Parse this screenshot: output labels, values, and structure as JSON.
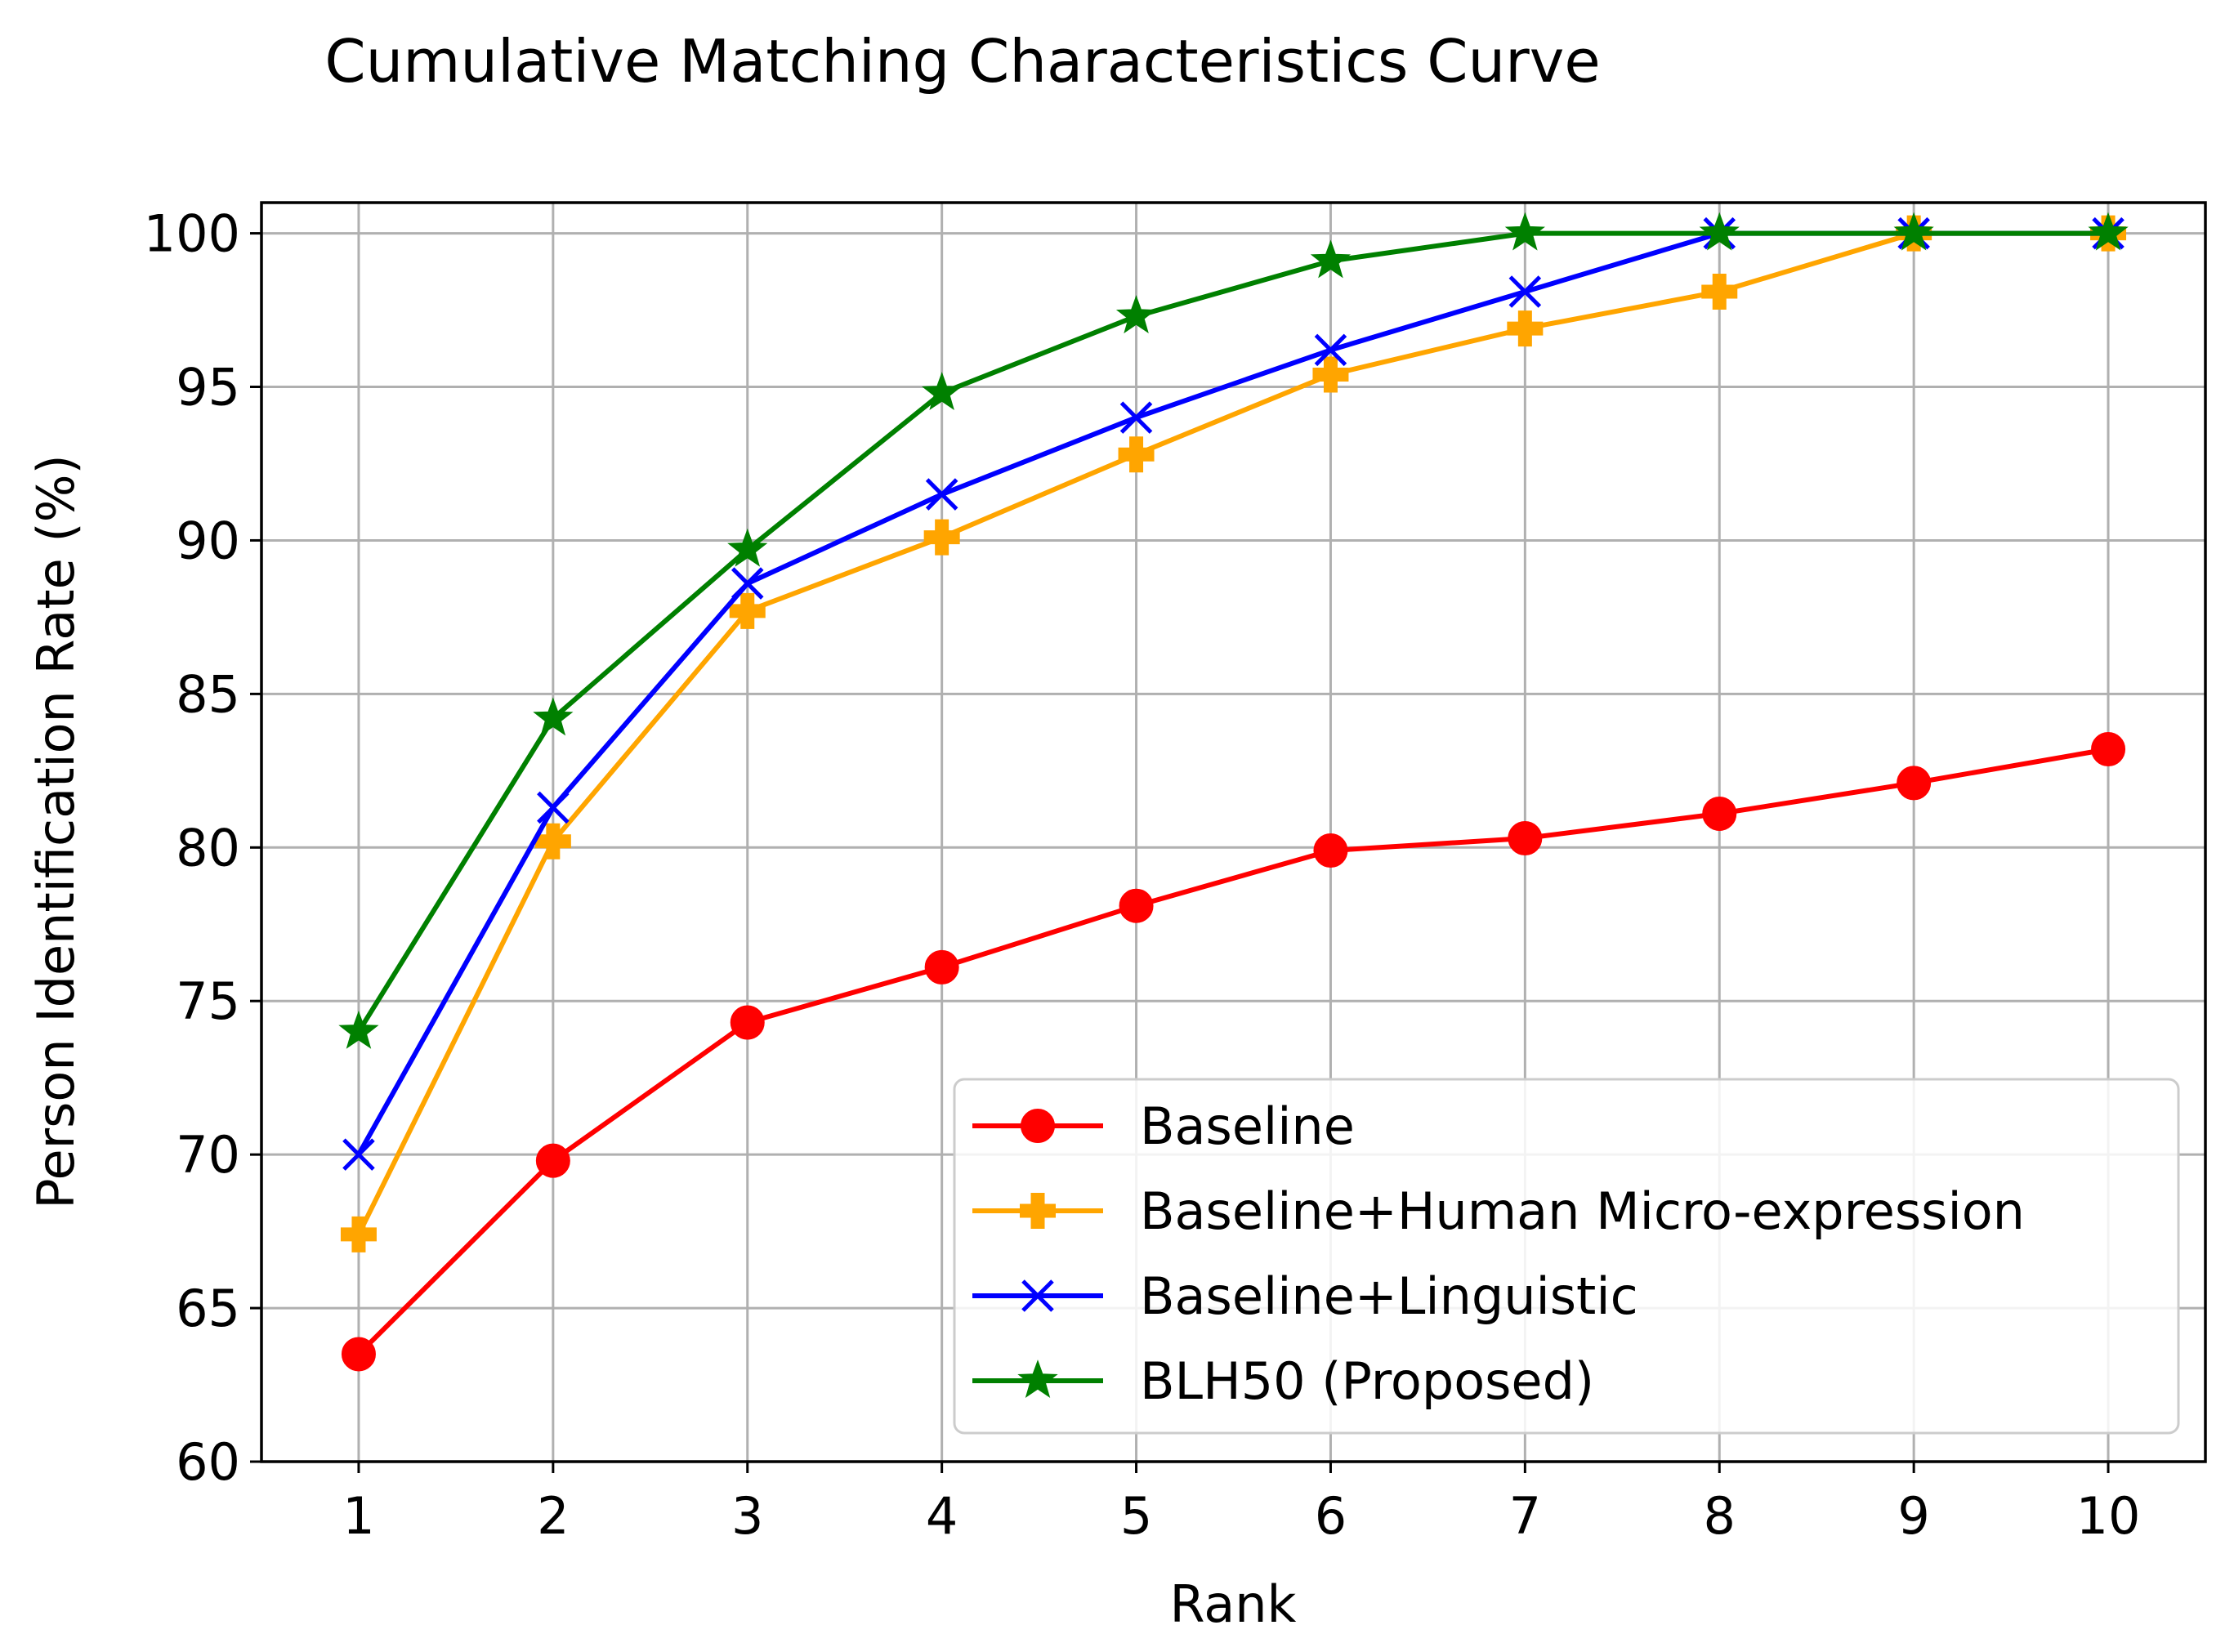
{
  "chart_data": {
    "type": "line",
    "title": "Cumulative Matching Characteristics Curve",
    "xlabel": "Rank",
    "ylabel": "Person Identification Rate (%)",
    "x": [
      1,
      2,
      3,
      4,
      5,
      6,
      7,
      8,
      9,
      10
    ],
    "xlim": [
      0.5,
      10.5
    ],
    "ylim": [
      60,
      101
    ],
    "xticks": [
      1,
      2,
      3,
      4,
      5,
      6,
      7,
      8,
      9,
      10
    ],
    "yticks": [
      60,
      65,
      70,
      75,
      80,
      85,
      90,
      95,
      100
    ],
    "grid": true,
    "legend_position": "lower-right",
    "series": [
      {
        "name": "Baseline",
        "color": "#ff0000",
        "marker": "circle",
        "values": [
          63.5,
          69.8,
          74.3,
          76.1,
          78.1,
          79.9,
          80.3,
          81.1,
          82.1,
          83.2
        ]
      },
      {
        "name": "Baseline+Human Micro-expression",
        "color": "#ffa500",
        "marker": "plus",
        "values": [
          67.4,
          80.2,
          87.7,
          90.1,
          92.8,
          95.4,
          96.9,
          98.1,
          100.0,
          100.0
        ]
      },
      {
        "name": "Baseline+Linguistic",
        "color": "#0000ff",
        "marker": "x",
        "values": [
          70.0,
          81.3,
          88.6,
          91.5,
          94.0,
          96.2,
          98.1,
          100.0,
          100.0,
          100.0
        ]
      },
      {
        "name": "BLH50 (Proposed)",
        "color": "#008000",
        "marker": "star",
        "values": [
          74.0,
          84.2,
          89.7,
          94.8,
          97.3,
          99.1,
          100.0,
          100.0,
          100.0,
          100.0
        ]
      }
    ]
  }
}
